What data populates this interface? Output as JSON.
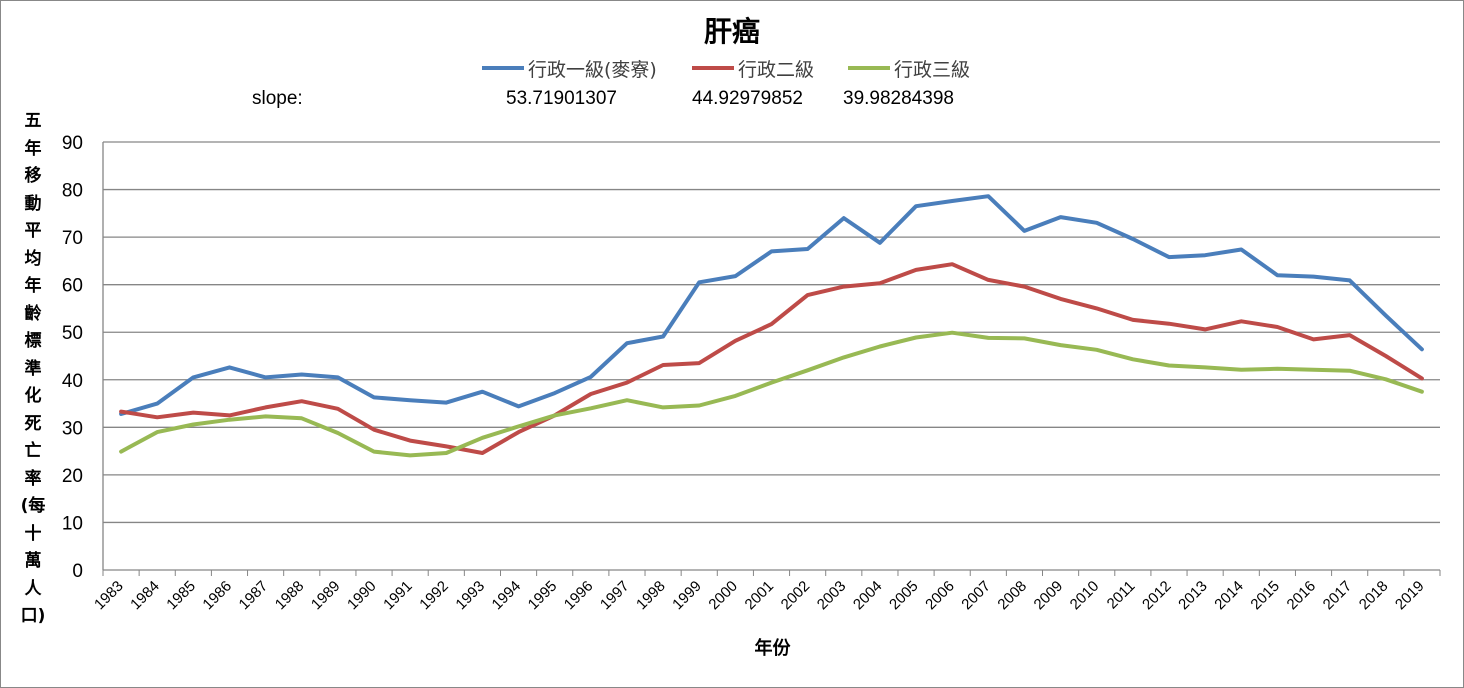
{
  "chart_data": {
    "type": "line",
    "title": "肝癌",
    "xlabel": "年份",
    "ylabel": "五年移動平均年齡標準化死亡率(每十萬人口)",
    "ylim": [
      0,
      90
    ],
    "yticks": [
      0,
      10,
      20,
      30,
      40,
      50,
      60,
      70,
      80,
      90
    ],
    "grid": true,
    "legend_position": "top",
    "categories": [
      "1983",
      "1984",
      "1985",
      "1986",
      "1987",
      "1988",
      "1989",
      "1990",
      "1991",
      "1992",
      "1993",
      "1994",
      "1995",
      "1996",
      "1997",
      "1998",
      "1999",
      "2000",
      "2001",
      "2002",
      "2003",
      "2004",
      "2005",
      "2006",
      "2007",
      "2008",
      "2009",
      "2010",
      "2011",
      "2012",
      "2013",
      "2014",
      "2015",
      "2016",
      "2017",
      "2018",
      "2019"
    ],
    "series": [
      {
        "name": "行政一級(麥寮)",
        "color": "#4a7ebb",
        "values": [
          32.8,
          35.0,
          40.5,
          42.6,
          40.5,
          41.1,
          40.5,
          36.3,
          35.7,
          35.2,
          37.5,
          34.4,
          37.2,
          40.6,
          47.7,
          49.1,
          60.5,
          61.8,
          67.0,
          67.5,
          74.0,
          68.8,
          76.5,
          77.6,
          78.6,
          71.3,
          74.2,
          73.0,
          69.6,
          65.8,
          66.2,
          67.4,
          62.0,
          61.7,
          60.9,
          53.5,
          46.4
        ]
      },
      {
        "name": "行政二級",
        "color": "#be4b48",
        "values": [
          33.3,
          32.1,
          33.1,
          32.5,
          34.2,
          35.5,
          33.9,
          29.5,
          27.2,
          26.0,
          24.6,
          29.0,
          32.5,
          37.0,
          39.4,
          43.1,
          43.5,
          48.2,
          51.7,
          57.8,
          59.6,
          60.3,
          63.1,
          64.3,
          61.0,
          59.6,
          57.0,
          55.0,
          52.6,
          51.8,
          50.6,
          52.3,
          51.1,
          48.5,
          49.4,
          45.0,
          40.3
        ]
      },
      {
        "name": "行政三級",
        "color": "#98b954",
        "values": [
          24.9,
          29.0,
          30.6,
          31.6,
          32.3,
          31.9,
          28.8,
          24.9,
          24.1,
          24.6,
          27.8,
          30.2,
          32.5,
          34.0,
          35.7,
          34.2,
          34.6,
          36.6,
          39.4,
          42.0,
          44.7,
          47.0,
          48.9,
          49.9,
          48.8,
          48.7,
          47.3,
          46.3,
          44.3,
          43.0,
          42.6,
          42.1,
          42.3,
          42.1,
          41.9,
          40.1,
          37.5
        ]
      }
    ],
    "annotations": {
      "slope_label": "slope:",
      "slopes": [
        "53.71901307",
        "44.92979852",
        "39.98284398"
      ]
    }
  }
}
